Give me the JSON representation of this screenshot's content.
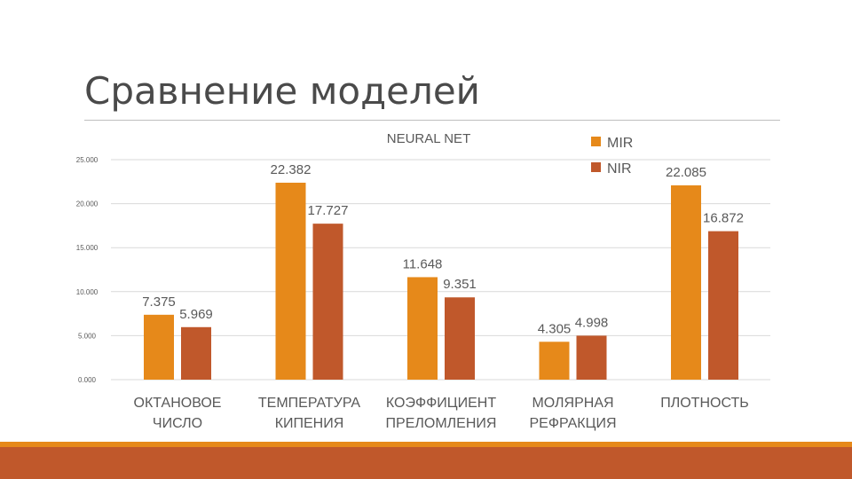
{
  "slide": {
    "title": "Сравнение моделей"
  },
  "colors": {
    "mir": "#e6891a",
    "nir": "#c0582b",
    "grid": "#d9d9d9",
    "text": "#595959",
    "bar_accent": "#e6891a",
    "bar_main": "#c0582b"
  },
  "chart_data": {
    "type": "bar",
    "title": "NEURAL NET",
    "categories": [
      [
        "ОКТАНОВОЕ",
        "ЧИСЛО"
      ],
      [
        "ТЕМПЕРАТУРА",
        "КИПЕНИЯ"
      ],
      [
        "КОЭФФИЦИЕНТ",
        "ПРЕЛОМЛЕНИЯ"
      ],
      [
        "МОЛЯРНАЯ",
        "РЕФРАКЦИЯ"
      ],
      [
        "ПЛОТНОСТЬ"
      ]
    ],
    "series": [
      {
        "name": "MIR",
        "values": [
          7.375,
          22.382,
          11.648,
          4.305,
          22.085
        ],
        "labels": [
          "7.375",
          "22.382",
          "11.648",
          "4.305",
          "22.085"
        ]
      },
      {
        "name": "NIR",
        "values": [
          5.969,
          17.727,
          9.351,
          4.998,
          16.872
        ],
        "labels": [
          "5.969",
          "17.727",
          "9.351",
          "4.998",
          "16.872"
        ]
      }
    ],
    "yticks": [
      "0.000",
      "5.000",
      "10.000",
      "15.000",
      "20.000",
      "25.000"
    ],
    "ylim": [
      0,
      25
    ],
    "grid": true,
    "legend": "top-right"
  }
}
